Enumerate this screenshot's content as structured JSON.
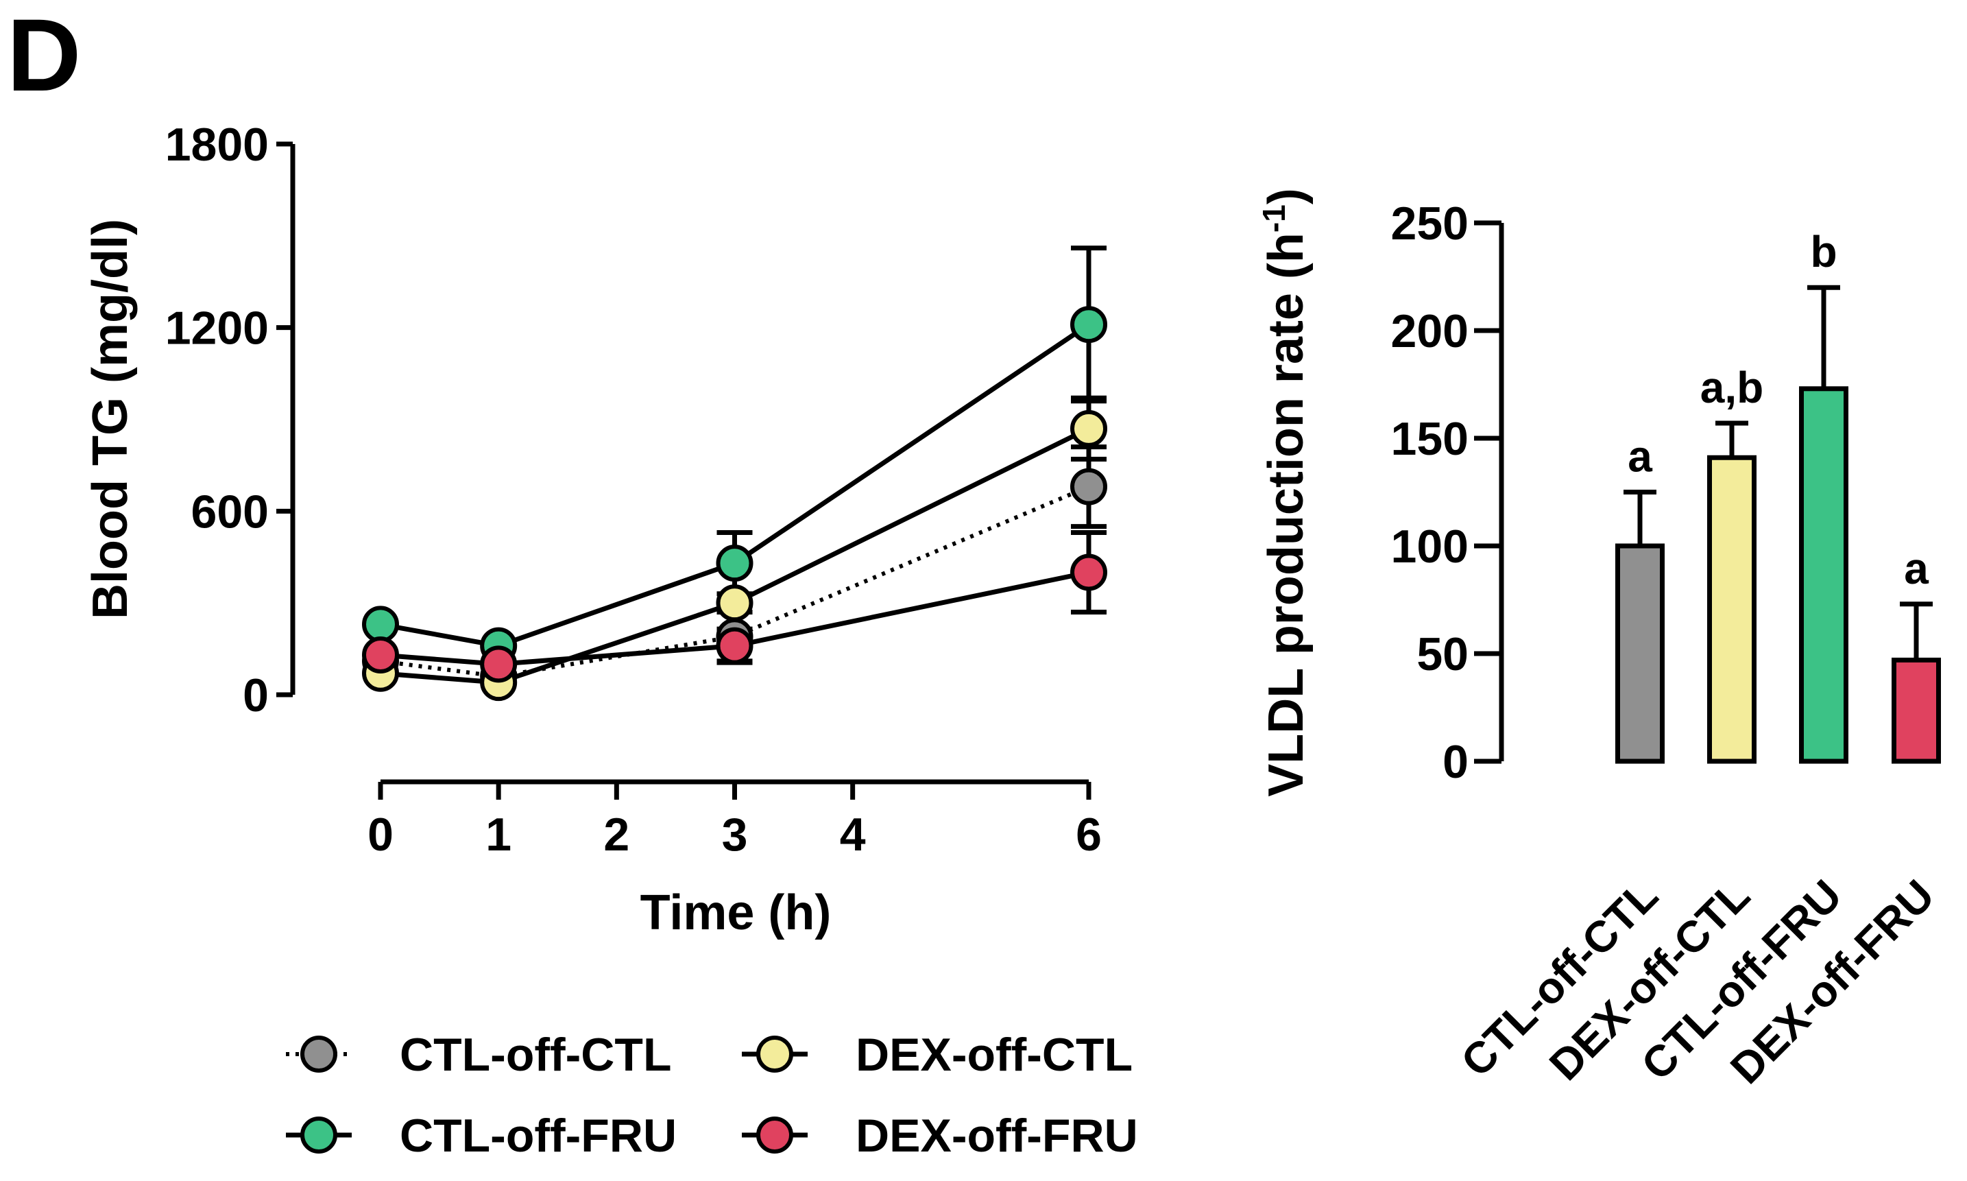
{
  "panel_label": "D",
  "chart_data": [
    {
      "type": "line",
      "ylabel": "Blood TG (mg/dl)",
      "xlabel": "Time (h)",
      "xlim": [
        0,
        6
      ],
      "ylim": [
        0,
        1800
      ],
      "xticks": [
        0,
        1,
        2,
        3,
        4,
        6
      ],
      "xtick_labels": [
        "0",
        "1",
        "2",
        "3",
        "4",
        "6"
      ],
      "yticks": [
        0,
        600,
        1200,
        1800
      ],
      "ytick_labels": [
        "0",
        "600",
        "1200",
        "1800"
      ],
      "x": [
        0,
        1,
        3,
        6
      ],
      "series": [
        {
          "name": "CTL-off-CTL",
          "color": "#909090",
          "dashed": true,
          "values": [
            110,
            60,
            190,
            680
          ],
          "errors": [
            0,
            0,
            80,
            130
          ]
        },
        {
          "name": "DEX-off-CTL",
          "color": "#f3ec9b",
          "dashed": false,
          "values": [
            70,
            40,
            300,
            870
          ],
          "errors": [
            0,
            0,
            0,
            100
          ]
        },
        {
          "name": "CTL-off-FRU",
          "color": "#3cc286",
          "dashed": false,
          "values": [
            230,
            160,
            430,
            1210
          ],
          "errors": [
            0,
            0,
            100,
            250
          ]
        },
        {
          "name": "DEX-off-FRU",
          "color": "#e0425f",
          "dashed": false,
          "values": [
            130,
            100,
            160,
            400
          ],
          "errors": [
            0,
            0,
            55,
            130
          ]
        }
      ]
    },
    {
      "type": "bar",
      "ylabel": "VLDL production rate (h",
      "ylabel_sup": "-1",
      "ylabel_close": ")",
      "ylim": [
        0,
        250
      ],
      "yticks": [
        0,
        50,
        100,
        150,
        200,
        250
      ],
      "ytick_labels": [
        "0",
        "50",
        "100",
        "150",
        "200",
        "250"
      ],
      "categories": [
        "CTL-off-CTL",
        "DEX-off-CTL",
        "CTL-off-FRU",
        "DEX-off-FRU"
      ],
      "values": [
        100,
        141,
        173,
        47
      ],
      "errors": [
        25,
        16,
        47,
        26
      ],
      "colors": [
        "#909090",
        "#f3ec9b",
        "#3cc286",
        "#e0425f"
      ],
      "significance": [
        "a",
        "a,b",
        "b",
        "a"
      ]
    }
  ],
  "legend": [
    {
      "label": "CTL-off-CTL",
      "color": "#909090",
      "dashed": true
    },
    {
      "label": "DEX-off-CTL",
      "color": "#f3ec9b",
      "dashed": false
    },
    {
      "label": "CTL-off-FRU",
      "color": "#3cc286",
      "dashed": false
    },
    {
      "label": "DEX-off-FRU",
      "color": "#e0425f",
      "dashed": false
    }
  ]
}
